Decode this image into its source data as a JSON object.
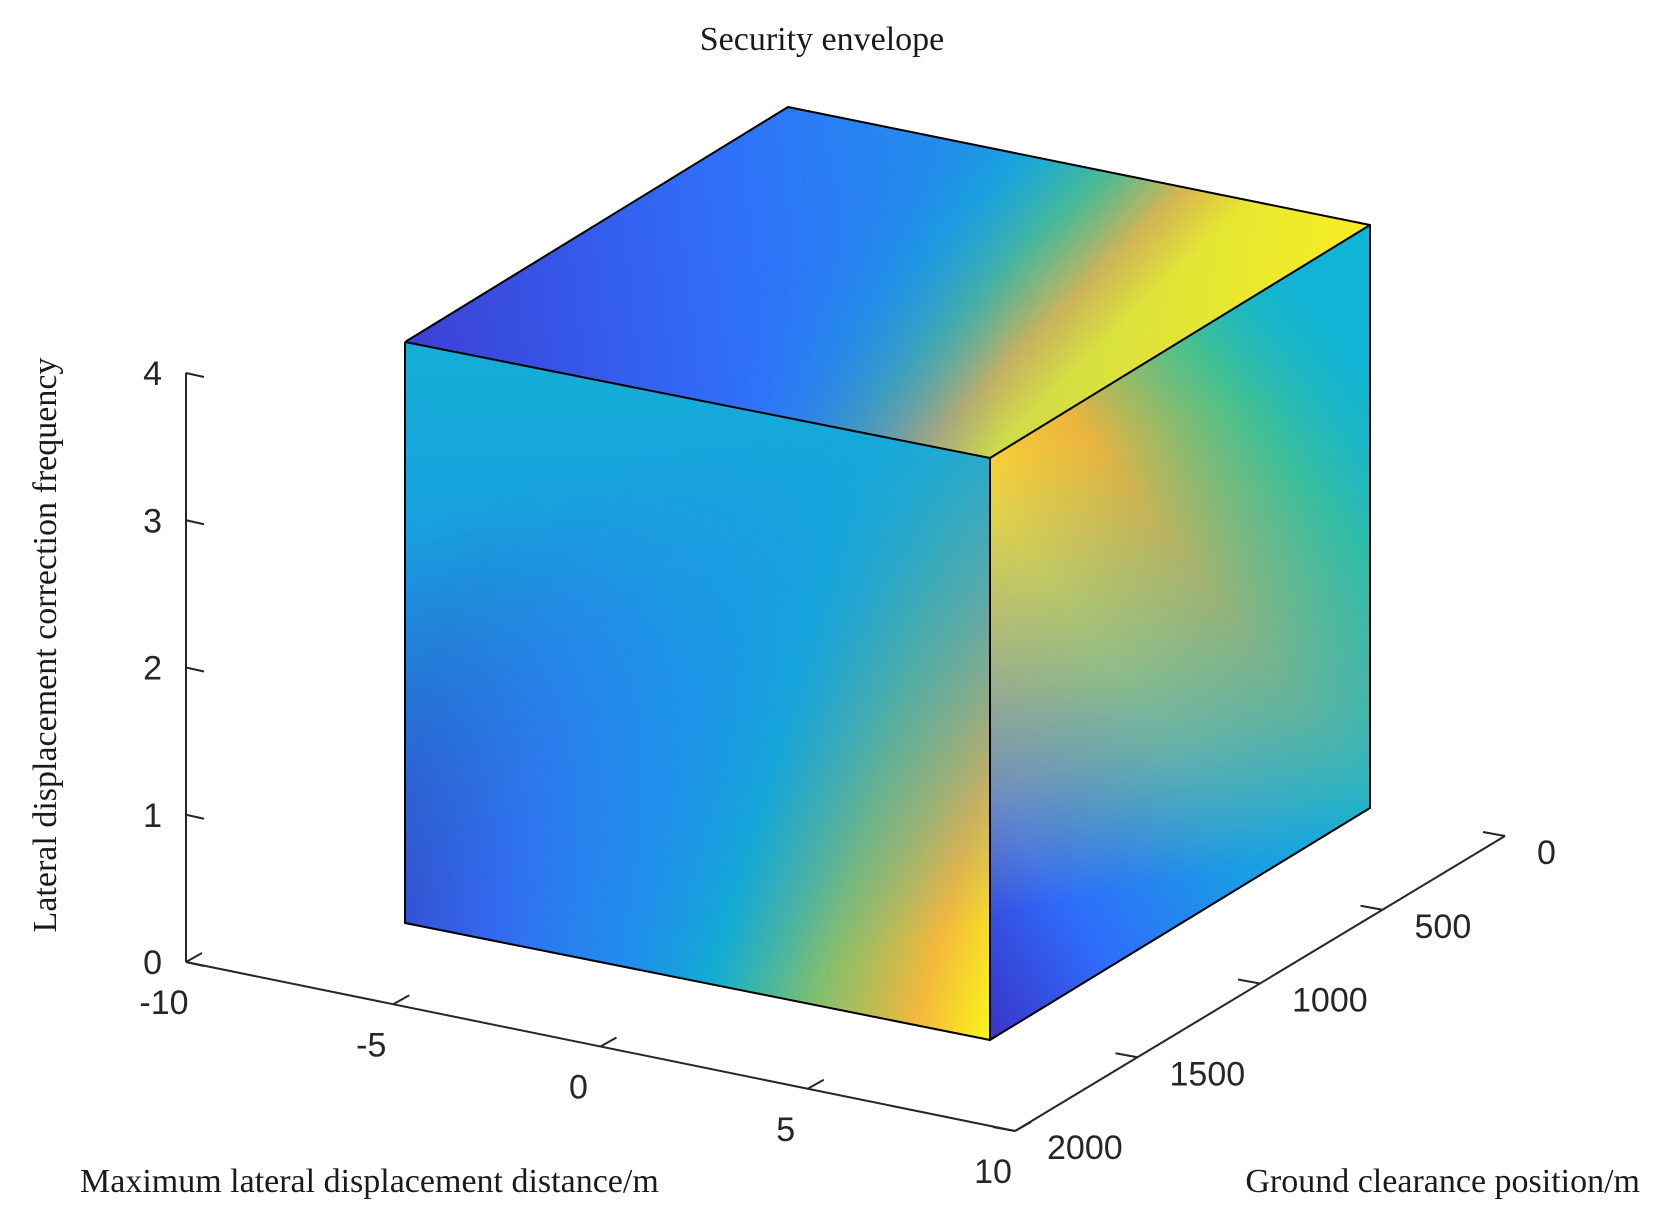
{
  "chart_data": {
    "type": "surface3d",
    "title": "Security envelope",
    "xlabel": "Maximum lateral displacement distance/m",
    "ylabel": "Ground clearance position/m",
    "zlabel": "Lateral displacement correction frequency",
    "x_ticks": [
      -10,
      -5,
      0,
      5,
      10
    ],
    "y_ticks": [
      0,
      500,
      1000,
      1500,
      2000
    ],
    "z_ticks": [
      0,
      1,
      2,
      3,
      4
    ],
    "xlim": [
      -10,
      10
    ],
    "ylim": [
      0,
      2000
    ],
    "zlim": [
      0,
      4
    ],
    "shape": "cube",
    "cube_extent": {
      "x": [
        -6,
        8
      ],
      "y": [
        0,
        2000
      ],
      "z": [
        0.2,
        4
      ]
    },
    "colormap": "parula",
    "colormap_colors": [
      "#3e26a8",
      "#4743e2",
      "#2f6bfb",
      "#1f94e8",
      "#0ab3cc",
      "#2dc195",
      "#8ac562",
      "#e8b83c",
      "#fcc83c",
      "#f9fb15"
    ],
    "grid": false
  }
}
